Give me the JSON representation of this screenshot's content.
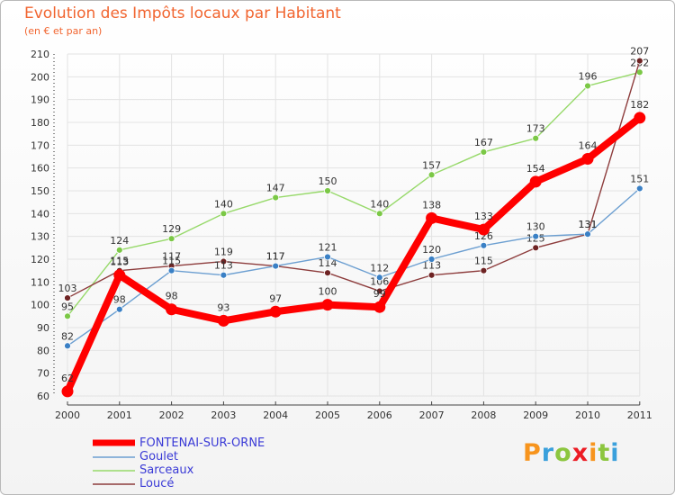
{
  "chart_data": {
    "type": "line",
    "title": "Evolution des Impôts locaux par Habitant",
    "subtitle": "(en € et par an)",
    "categories": [
      "2000",
      "2001",
      "2002",
      "2003",
      "2004",
      "2005",
      "2006",
      "2007",
      "2008",
      "2009",
      "2010",
      "2011"
    ],
    "ylim": [
      60,
      210
    ],
    "yticks": [
      60,
      70,
      80,
      90,
      100,
      110,
      120,
      130,
      140,
      150,
      160,
      170,
      180,
      190,
      200,
      210
    ],
    "series": [
      {
        "name": "Sarceaux",
        "color": "#97d96a",
        "dot": "#7bc846",
        "values": [
          95,
          124,
          129,
          140,
          147,
          150,
          140,
          157,
          167,
          173,
          196,
          202
        ]
      },
      {
        "name": "Loucé",
        "color": "#8d3c3c",
        "dot": "#6e2323",
        "values": [
          103,
          115,
          117,
          119,
          117,
          114,
          106,
          113,
          115,
          125,
          131,
          207
        ]
      },
      {
        "name": "Goulet",
        "color": "#6c9fd1",
        "dot": "#3a80c5",
        "values": [
          82,
          98,
          115,
          113,
          117,
          121,
          112,
          120,
          126,
          130,
          131,
          151
        ]
      },
      {
        "name": "FONTENAI-SUR-ORNE",
        "color": "#ff0000",
        "dot": "#ff0000",
        "values": [
          62,
          113,
          98,
          93,
          97,
          100,
          99,
          138,
          133,
          154,
          164,
          182
        ]
      }
    ],
    "legend": [
      "FONTENAI-SUR-ORNE",
      "Goulet",
      "Sarceaux",
      "Loucé"
    ]
  },
  "branding": {
    "logo_letters": [
      "P",
      "r",
      "o",
      "x",
      "i",
      "t",
      "i"
    ],
    "logo_colors": [
      "#f7941d",
      "#3aa0dc",
      "#8cc63f",
      "#ec1c24",
      "#f7941d",
      "#8cc63f",
      "#3aa0dc"
    ]
  }
}
